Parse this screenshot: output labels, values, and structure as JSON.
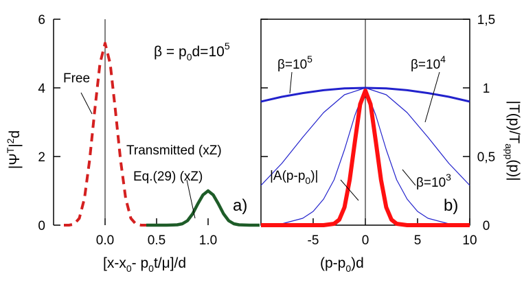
{
  "chart_data": [
    {
      "id": "a",
      "type": "line",
      "panel_label": "a)",
      "xlabel": "[x-x₀- p₀t/μ]/d",
      "ylabel": "|Ψᵀ|²d",
      "xlim": [
        -0.5,
        1.5
      ],
      "ylim": [
        0,
        6
      ],
      "x_ticks": [
        0.0,
        0.5,
        1.0
      ],
      "x_tick_labels": [
        "0.0",
        "0.5",
        "1.0"
      ],
      "y_ticks": [
        0,
        2,
        4,
        6
      ],
      "y_tick_labels": [
        "0",
        "2",
        "4",
        "6"
      ],
      "reference_line": {
        "x": 0.0
      },
      "series": [
        {
          "name": "Free",
          "style": "dashed",
          "color": "#d42020",
          "x": [
            -0.4,
            -0.35,
            -0.3,
            -0.25,
            -0.2,
            -0.15,
            -0.1,
            -0.05,
            0.0,
            0.05,
            0.1,
            0.15,
            0.2,
            0.25,
            0.3,
            0.35,
            0.4
          ],
          "y": [
            0.0,
            0.0,
            0.03,
            0.2,
            0.78,
            1.9,
            3.35,
            4.7,
            5.3,
            4.7,
            3.35,
            1.9,
            0.78,
            0.2,
            0.03,
            0.0,
            0.0
          ]
        },
        {
          "name": "Transmitted (xZ)",
          "style": "solid",
          "color": "#1e5c28",
          "x": [
            0.4,
            0.6,
            0.7,
            0.75,
            0.8,
            0.85,
            0.9,
            0.95,
            1.0,
            1.05,
            1.1,
            1.15,
            1.2,
            1.25,
            1.3,
            1.4,
            1.5
          ],
          "y": [
            0.0,
            0.0,
            0.01,
            0.04,
            0.13,
            0.33,
            0.62,
            0.88,
            1.0,
            0.88,
            0.62,
            0.33,
            0.13,
            0.04,
            0.01,
            0.0,
            0.0
          ]
        }
      ],
      "annotations": [
        {
          "text": "Free",
          "points_to": "Free"
        },
        {
          "text": "Transmitted (xZ)",
          "points_to": "Transmitted (xZ)"
        },
        {
          "text": "Eq.(29) (xZ)",
          "points_to": "Transmitted (xZ)"
        }
      ]
    },
    {
      "id": "b",
      "type": "line",
      "panel_label": "b)",
      "xlabel": "(p-p₀)d",
      "ylabel": "|T(p)/Tₐₚₚ(p)|",
      "xlim": [
        -10,
        10
      ],
      "ylim": [
        0,
        1.5
      ],
      "x_ticks": [
        -5,
        0,
        5,
        10
      ],
      "x_tick_labels": [
        "-5",
        "0",
        "5",
        "10"
      ],
      "y_ticks": [
        0,
        0.5,
        1,
        1.5
      ],
      "y_tick_labels": [
        "0",
        "0,5",
        "1",
        "1,5"
      ],
      "reference_line": {
        "x": 0
      },
      "header_text": "β = p₀d=10⁵",
      "series": [
        {
          "name": "β=10⁵",
          "color": "#2222cc",
          "line_width": 3,
          "x": [
            -10,
            -8,
            -6,
            -4,
            -2,
            0,
            2,
            4,
            6,
            8,
            10
          ],
          "y": [
            0.9,
            0.935,
            0.962,
            0.983,
            0.996,
            1.0,
            0.996,
            0.983,
            0.962,
            0.935,
            0.9
          ]
        },
        {
          "name": "β=10⁴",
          "color": "#2222cc",
          "line_width": 1.2,
          "x": [
            -10,
            -8,
            -6,
            -4,
            -2,
            0,
            2,
            4,
            6,
            8,
            10
          ],
          "y": [
            0.29,
            0.45,
            0.64,
            0.82,
            0.95,
            1.0,
            0.95,
            0.82,
            0.64,
            0.45,
            0.29
          ]
        },
        {
          "name": "β=10³",
          "color": "#2222cc",
          "line_width": 1.2,
          "x": [
            -10,
            -8,
            -6,
            -5,
            -4,
            -3,
            -2,
            -1,
            0,
            1,
            2,
            3,
            4,
            5,
            6,
            8,
            10
          ],
          "y": [
            0.0,
            0.01,
            0.05,
            0.1,
            0.19,
            0.33,
            0.55,
            0.8,
            1.0,
            0.8,
            0.55,
            0.33,
            0.19,
            0.1,
            0.05,
            0.01,
            0.0
          ]
        },
        {
          "name": "|A(p-p₀)|",
          "color": "#ff1010",
          "line_width": 6,
          "x": [
            -10,
            -4,
            -3,
            -2.5,
            -2,
            -1.5,
            -1,
            -0.5,
            0,
            0.5,
            1,
            1.5,
            2,
            2.5,
            3,
            4,
            10
          ],
          "y": [
            0.0,
            0.0,
            0.01,
            0.04,
            0.13,
            0.33,
            0.61,
            0.88,
            0.98,
            0.88,
            0.61,
            0.33,
            0.13,
            0.04,
            0.01,
            0.0,
            0.0
          ]
        }
      ],
      "annotations": [
        {
          "text": "β=10⁵",
          "points_to": "β=10⁵"
        },
        {
          "text": "β=10⁴",
          "points_to": "β=10⁴"
        },
        {
          "text": "β=10³",
          "points_to": "β=10³"
        },
        {
          "text": "|A(p-p₀)|",
          "points_to": "|A(p-p₀)|"
        }
      ]
    }
  ]
}
